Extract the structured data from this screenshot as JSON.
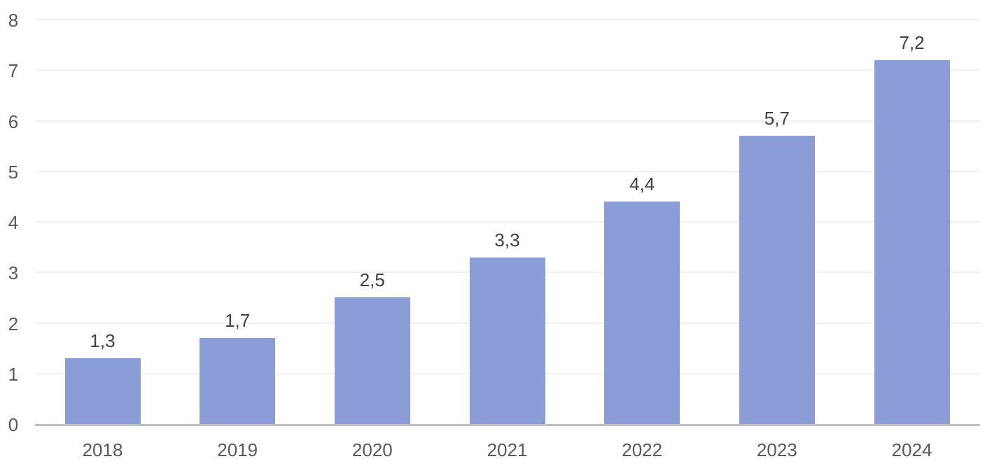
{
  "chart_data": {
    "type": "bar",
    "title": "",
    "xlabel": "",
    "ylabel": "",
    "categories": [
      "2018",
      "2019",
      "2020",
      "2021",
      "2022",
      "2023",
      "2024"
    ],
    "values": [
      1.3,
      1.7,
      2.5,
      3.3,
      4.4,
      5.7,
      7.2
    ],
    "value_labels": [
      "1,3",
      "1,7",
      "2,5",
      "3,3",
      "4,4",
      "5,7",
      "7,2"
    ],
    "ylim": [
      0,
      8
    ],
    "yticks": [
      0,
      1,
      2,
      3,
      4,
      5,
      6,
      7,
      8
    ],
    "grid": "horizontal",
    "legend": "none"
  },
  "colors": {
    "bar_fill": "#8B9DD7",
    "axis_line": "#C1C1C1",
    "gridline": "#F1F1F1",
    "tick_label": "#595959",
    "value_label": "#404040",
    "background": "#FFFFFF"
  }
}
